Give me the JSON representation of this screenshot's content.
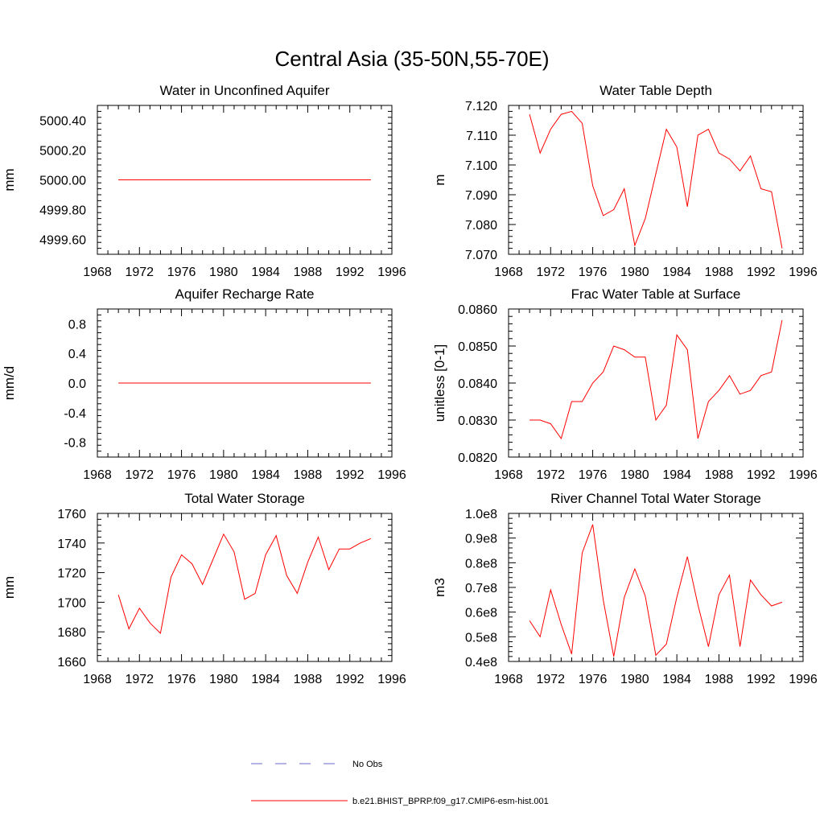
{
  "figure": {
    "title": "Central Asia (35-50N,55-70E)"
  },
  "legend": {
    "entries": [
      {
        "label": "No Obs",
        "color": "#6a6acd",
        "style": "dashed"
      },
      {
        "label": "b.e21.BHIST_BPRP.f09_g17.CMIP6-esm-hist.001",
        "color": "#ff0000",
        "style": "solid"
      }
    ]
  },
  "chart_data": [
    {
      "type": "line",
      "title": "Water in Unconfined Aquifer",
      "ylabel": "mm",
      "xlim": [
        1968,
        1996
      ],
      "ylim": [
        4999.5,
        5000.5
      ],
      "xticks": [
        "1968",
        "1972",
        "1976",
        "1980",
        "1984",
        "1988",
        "1992",
        "1996"
      ],
      "yticks": [
        "4999.60",
        "4999.80",
        "5000.00",
        "5000.20",
        "5000.40"
      ],
      "series": [
        {
          "color": "#ff0000",
          "x": [
            1970,
            1971,
            1972,
            1973,
            1974,
            1975,
            1976,
            1977,
            1978,
            1979,
            1980,
            1981,
            1982,
            1983,
            1984,
            1985,
            1986,
            1987,
            1988,
            1989,
            1990,
            1991,
            1992,
            1993,
            1994
          ],
          "values": [
            5000,
            5000,
            5000,
            5000,
            5000,
            5000,
            5000,
            5000,
            5000,
            5000,
            5000,
            5000,
            5000,
            5000,
            5000,
            5000,
            5000,
            5000,
            5000,
            5000,
            5000,
            5000,
            5000,
            5000,
            5000
          ]
        }
      ]
    },
    {
      "type": "line",
      "title": "Water Table Depth",
      "ylabel": "m",
      "xlim": [
        1968,
        1996
      ],
      "ylim": [
        7.07,
        7.12
      ],
      "xticks": [
        "1968",
        "1972",
        "1976",
        "1980",
        "1984",
        "1988",
        "1992",
        "1996"
      ],
      "yticks": [
        "7.070",
        "7.080",
        "7.090",
        "7.100",
        "7.110",
        "7.120"
      ],
      "series": [
        {
          "color": "#ff0000",
          "x": [
            1970,
            1971,
            1972,
            1973,
            1974,
            1975,
            1976,
            1977,
            1978,
            1979,
            1980,
            1981,
            1982,
            1983,
            1984,
            1985,
            1986,
            1987,
            1988,
            1989,
            1990,
            1991,
            1992,
            1993,
            1994
          ],
          "values": [
            7.117,
            7.104,
            7.112,
            7.117,
            7.118,
            7.114,
            7.093,
            7.083,
            7.085,
            7.092,
            7.073,
            7.082,
            7.097,
            7.112,
            7.106,
            7.086,
            7.11,
            7.112,
            7.104,
            7.102,
            7.098,
            7.103,
            7.092,
            7.091,
            7.072
          ]
        }
      ]
    },
    {
      "type": "line",
      "title": "Aquifer Recharge Rate",
      "ylabel": "mm/d",
      "xlim": [
        1968,
        1996
      ],
      "ylim": [
        -1.0,
        1.0
      ],
      "xticks": [
        "1968",
        "1972",
        "1976",
        "1980",
        "1984",
        "1988",
        "1992",
        "1996"
      ],
      "yticks": [
        "-0.8",
        "-0.4",
        "0.0",
        "0.4",
        "0.8"
      ],
      "series": [
        {
          "color": "#ff0000",
          "x": [
            1970,
            1971,
            1972,
            1973,
            1974,
            1975,
            1976,
            1977,
            1978,
            1979,
            1980,
            1981,
            1982,
            1983,
            1984,
            1985,
            1986,
            1987,
            1988,
            1989,
            1990,
            1991,
            1992,
            1993,
            1994
          ],
          "values": [
            0,
            0,
            0,
            0,
            0,
            0,
            0,
            0,
            0,
            0,
            0,
            0,
            0,
            0,
            0,
            0,
            0,
            0,
            0,
            0,
            0,
            0,
            0,
            0,
            0
          ]
        }
      ]
    },
    {
      "type": "line",
      "title": "Frac Water Table at Surface",
      "ylabel": "unitless [0-1]",
      "xlim": [
        1968,
        1996
      ],
      "ylim": [
        0.082,
        0.086
      ],
      "xticks": [
        "1968",
        "1972",
        "1976",
        "1980",
        "1984",
        "1988",
        "1992",
        "1996"
      ],
      "yticks": [
        "0.0820",
        "0.0830",
        "0.0840",
        "0.0850",
        "0.0860"
      ],
      "series": [
        {
          "color": "#ff0000",
          "x": [
            1970,
            1971,
            1972,
            1973,
            1974,
            1975,
            1976,
            1977,
            1978,
            1979,
            1980,
            1981,
            1982,
            1983,
            1984,
            1985,
            1986,
            1987,
            1988,
            1989,
            1990,
            1991,
            1992,
            1993,
            1994
          ],
          "values": [
            0.083,
            0.083,
            0.0829,
            0.0825,
            0.0835,
            0.0835,
            0.084,
            0.0843,
            0.085,
            0.0849,
            0.0847,
            0.0847,
            0.083,
            0.0834,
            0.0853,
            0.0849,
            0.0825,
            0.0835,
            0.0838,
            0.0842,
            0.0837,
            0.0838,
            0.0842,
            0.0843,
            0.0857
          ]
        }
      ]
    },
    {
      "type": "line",
      "title": "Total Water Storage",
      "ylabel": "mm",
      "xlim": [
        1968,
        1996
      ],
      "ylim": [
        1660,
        1760
      ],
      "xticks": [
        "1968",
        "1972",
        "1976",
        "1980",
        "1984",
        "1988",
        "1992",
        "1996"
      ],
      "yticks": [
        "1660",
        "1680",
        "1700",
        "1720",
        "1740",
        "1760"
      ],
      "series": [
        {
          "color": "#ff0000",
          "x": [
            1970,
            1971,
            1972,
            1973,
            1974,
            1975,
            1976,
            1977,
            1978,
            1979,
            1980,
            1981,
            1982,
            1983,
            1984,
            1985,
            1986,
            1987,
            1988,
            1989,
            1990,
            1991,
            1992,
            1993,
            1994
          ],
          "values": [
            1705,
            1682,
            1696,
            1686,
            1679,
            1717,
            1732,
            1726,
            1712,
            1729,
            1746,
            1734,
            1702,
            1706,
            1732,
            1745,
            1718,
            1706,
            1727,
            1744,
            1722,
            1736,
            1736,
            1740,
            1743
          ]
        }
      ]
    },
    {
      "type": "line",
      "title": "River Channel Total Water Storage",
      "ylabel": "m3",
      "xlim": [
        1968,
        1996
      ],
      "ylim": [
        0.4,
        1.0
      ],
      "xticks": [
        "1968",
        "1972",
        "1976",
        "1980",
        "1984",
        "1988",
        "1992",
        "1996"
      ],
      "yticks": [
        "0.4e8",
        "0.5e8",
        "0.6e8",
        "0.7e8",
        "0.8e8",
        "0.9e8",
        "1.0e8"
      ],
      "series": [
        {
          "color": "#ff0000",
          "x": [
            1970,
            1971,
            1972,
            1973,
            1974,
            1975,
            1976,
            1977,
            1978,
            1979,
            1980,
            1981,
            1982,
            1983,
            1984,
            1985,
            1986,
            1987,
            1988,
            1989,
            1990,
            1991,
            1992,
            1993,
            1994
          ],
          "values": [
            0.565,
            0.5,
            0.69,
            0.55,
            0.43,
            0.84,
            0.955,
            0.65,
            0.42,
            0.66,
            0.775,
            0.665,
            0.425,
            0.47,
            0.66,
            0.825,
            0.63,
            0.46,
            0.67,
            0.75,
            0.46,
            0.73,
            0.67,
            0.625,
            0.64
          ]
        }
      ]
    }
  ]
}
